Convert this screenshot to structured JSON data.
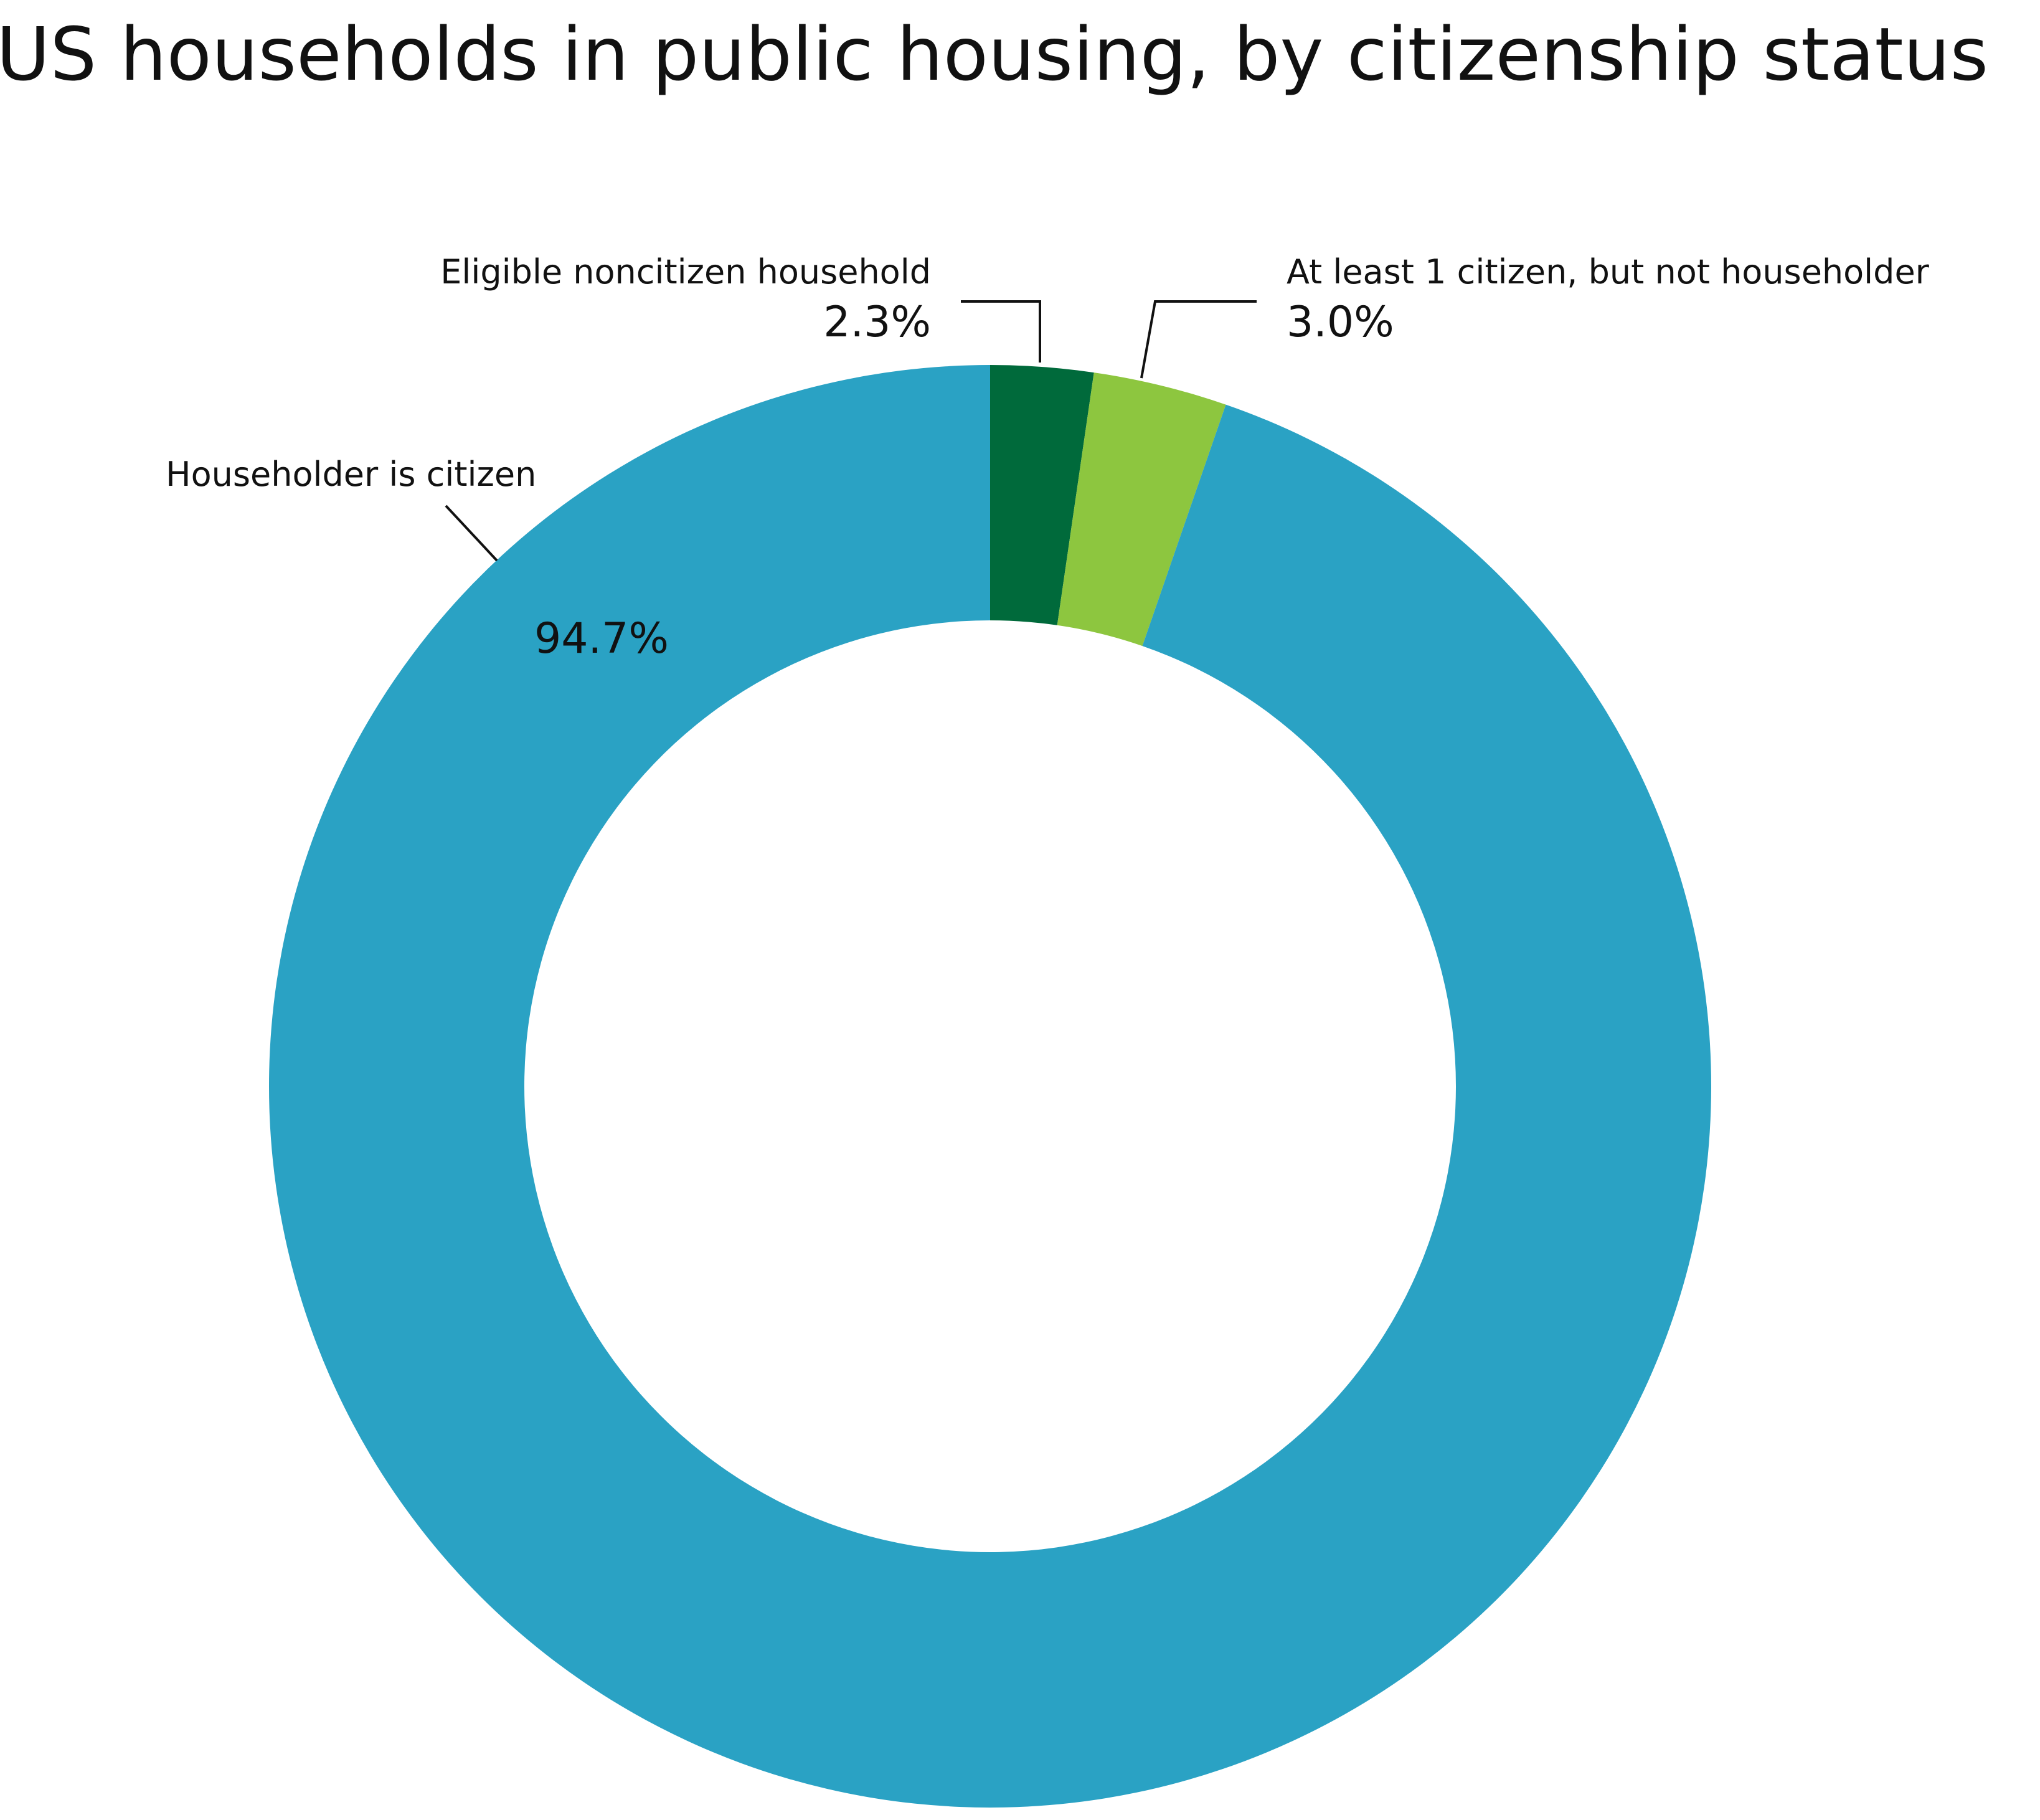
{
  "chart_data": {
    "type": "pie",
    "variant": "donut",
    "title": "US households in public housing, by citizenship status",
    "unit": "%",
    "slices": [
      {
        "name": "Eligible noncitizen household",
        "value": 2.3,
        "value_label": "2.3%",
        "color": "#006a3b"
      },
      {
        "name": "At least 1 citizen, but not householder",
        "value": 3.0,
        "value_label": "3.0%",
        "color": "#8dc63f"
      },
      {
        "name": "Householder is citizen",
        "value": 94.7,
        "value_label": "94.7%",
        "color": "#2aa2c4"
      }
    ],
    "start_angle": "12 o'clock",
    "direction": "clockwise",
    "legend": "none (direct labels with leader lines)"
  }
}
